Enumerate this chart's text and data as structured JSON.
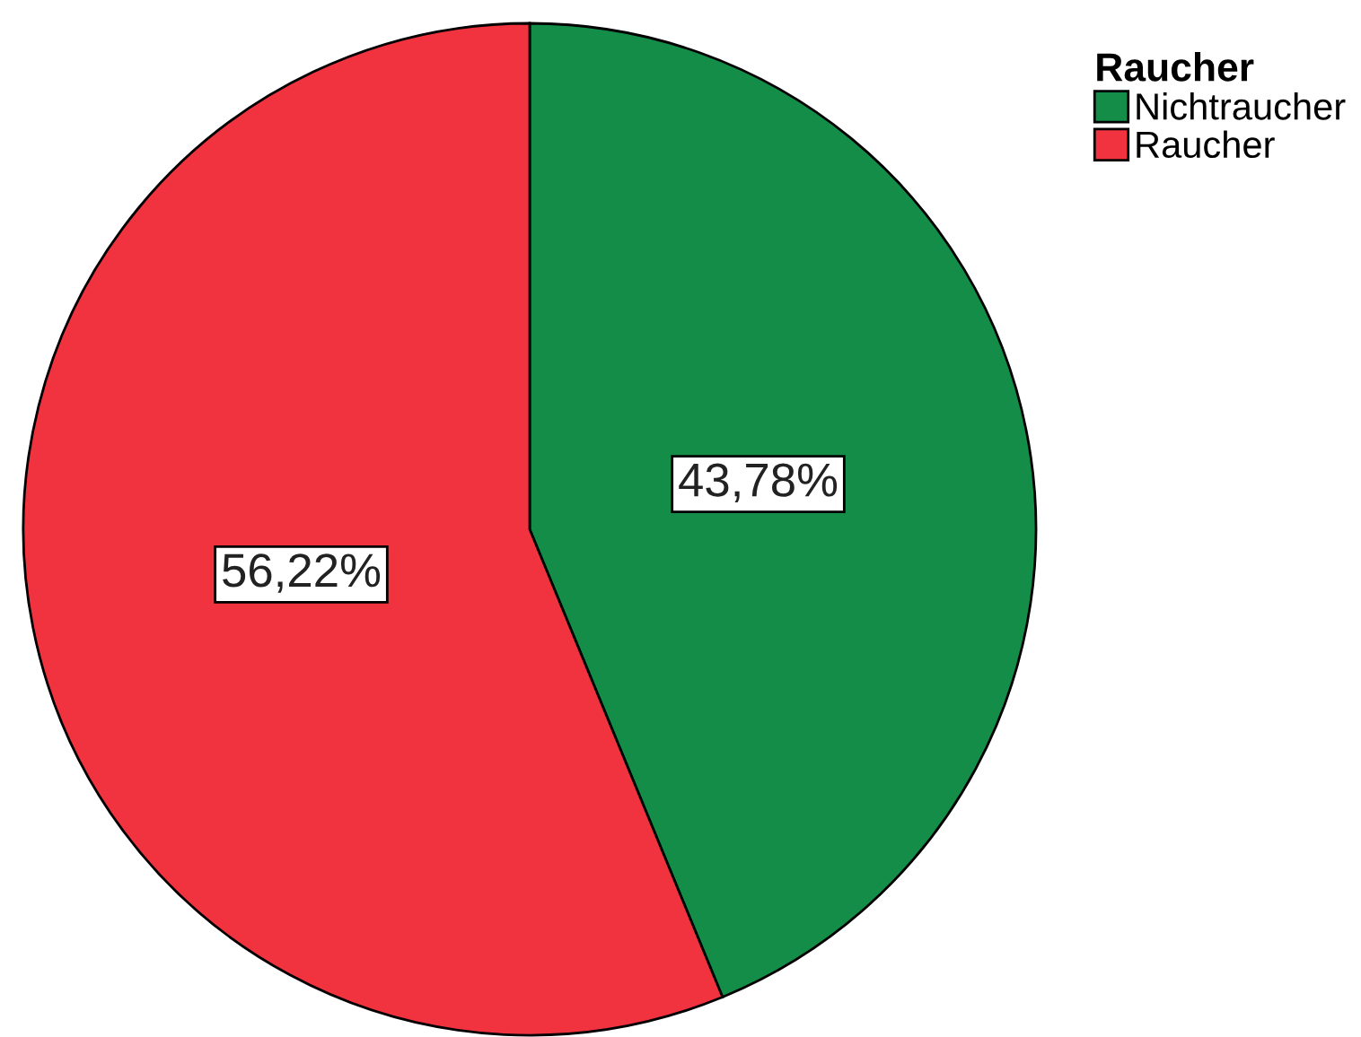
{
  "chart_data": {
    "type": "pie",
    "legend_title": "Raucher",
    "categories": [
      "Nichtraucher",
      "Raucher"
    ],
    "values": [
      43.78,
      56.22
    ],
    "colors": [
      "#138d48",
      "#f0333f"
    ],
    "value_labels": [
      "43,78%",
      "56,22%"
    ],
    "legend": "top right"
  }
}
